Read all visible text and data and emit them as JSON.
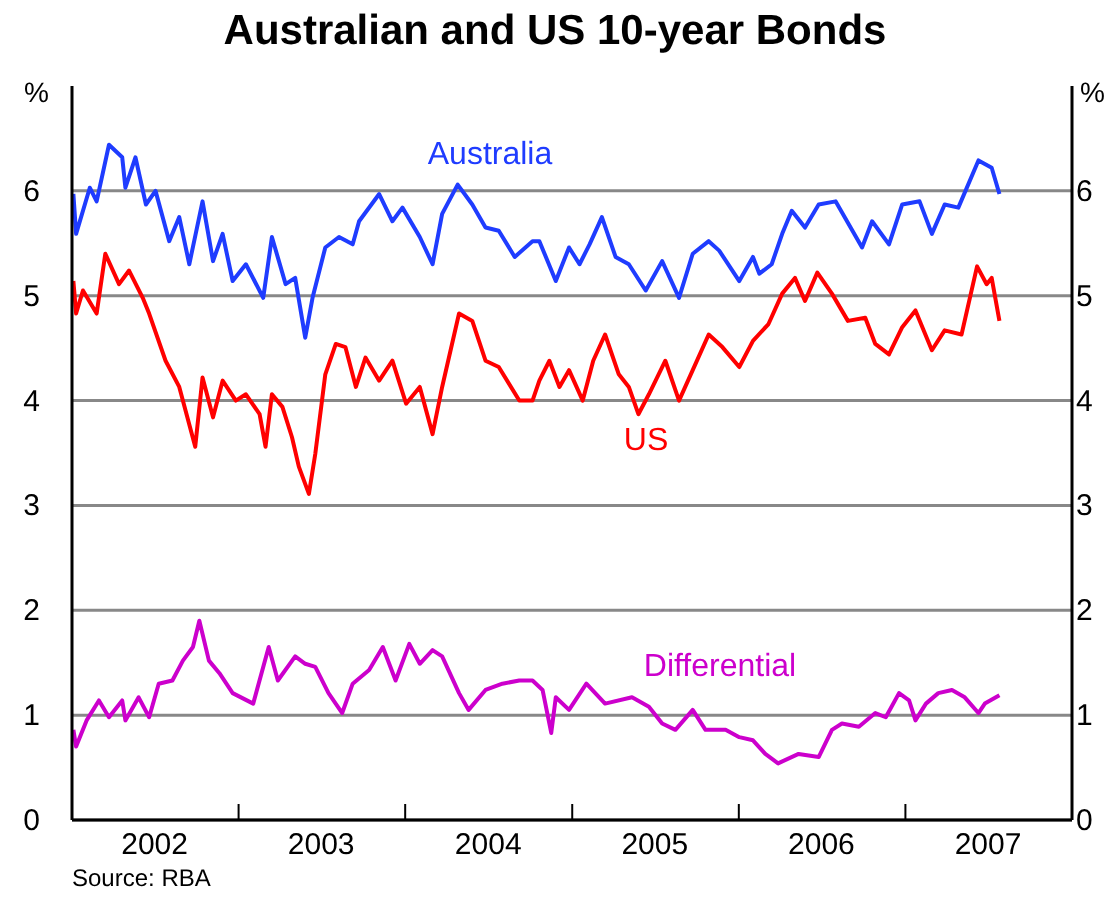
{
  "chart_data": {
    "type": "line",
    "title": "Australian and US 10-year Bonds",
    "ylabel": "%",
    "y2label": "%",
    "annotations": [
      "Source: RBA"
    ],
    "xlim": [
      "2002-01-01",
      "2008-01-01"
    ],
    "xticks": [
      {
        "value": "2002-07-01",
        "label": "2002"
      },
      {
        "value": "2003-01-01",
        "label": null
      },
      {
        "value": "2003-07-01",
        "label": "2003"
      },
      {
        "value": "2004-01-01",
        "label": null
      },
      {
        "value": "2004-07-01",
        "label": "2004"
      },
      {
        "value": "2005-01-01",
        "label": null
      },
      {
        "value": "2005-07-01",
        "label": "2005"
      },
      {
        "value": "2006-01-01",
        "label": null
      },
      {
        "value": "2006-07-01",
        "label": "2006"
      },
      {
        "value": "2007-01-01",
        "label": null
      },
      {
        "value": "2007-07-01",
        "label": "2007"
      }
    ],
    "ylim": [
      0,
      7
    ],
    "yticks": [
      0,
      1,
      2,
      3,
      4,
      5,
      6
    ],
    "y2lim": [
      0,
      7
    ],
    "y2ticks": [
      0,
      1,
      2,
      3,
      4,
      5,
      6
    ],
    "grid": "y",
    "series": [
      {
        "name": "Australia",
        "color": "#1f3cff",
        "x": [
          "2002-01-04",
          "2002-01-10",
          "2002-02-09",
          "2002-02-24",
          "2002-03-23",
          "2002-04-21",
          "2002-04-28",
          "2002-05-20",
          "2002-06-12",
          "2002-07-03",
          "2002-08-02",
          "2002-08-24",
          "2002-09-15",
          "2002-10-14",
          "2002-11-06",
          "2002-11-27",
          "2002-12-19",
          "2003-01-17",
          "2003-02-24",
          "2003-03-15",
          "2003-04-14",
          "2003-05-05",
          "2003-05-27",
          "2003-06-12",
          "2003-07-10",
          "2003-08-09",
          "2003-09-08",
          "2003-09-22",
          "2003-11-05",
          "2003-12-04",
          "2003-12-26",
          "2004-02-02",
          "2004-03-01",
          "2004-03-22",
          "2004-04-25",
          "2004-05-27",
          "2004-06-25",
          "2004-07-24",
          "2004-08-28",
          "2004-10-06",
          "2004-10-21",
          "2004-11-26",
          "2004-12-25",
          "2005-01-17",
          "2005-02-08",
          "2005-03-07",
          "2005-04-06",
          "2005-05-05",
          "2005-06-11",
          "2005-07-17",
          "2005-08-23",
          "2005-09-22",
          "2005-10-27",
          "2005-11-19",
          "2006-01-02",
          "2006-02-01",
          "2006-02-15",
          "2006-03-14",
          "2006-04-06",
          "2006-04-27",
          "2006-05-26",
          "2006-06-25",
          "2006-08-01",
          "2006-09-07",
          "2006-09-28",
          "2006-10-20",
          "2006-11-26",
          "2006-12-25",
          "2007-02-01",
          "2007-02-28",
          "2007-03-28",
          "2007-04-27",
          "2007-06-10",
          "2007-07-09",
          "2007-07-26"
        ],
        "values": [
          5.97,
          5.59,
          6.03,
          5.9,
          6.44,
          6.32,
          6.03,
          6.32,
          5.87,
          6.0,
          5.52,
          5.75,
          5.3,
          5.9,
          5.33,
          5.59,
          5.14,
          5.3,
          4.98,
          5.56,
          5.11,
          5.17,
          4.6,
          4.98,
          5.46,
          5.56,
          5.49,
          5.71,
          5.97,
          5.71,
          5.84,
          5.56,
          5.3,
          5.78,
          6.06,
          5.87,
          5.65,
          5.62,
          5.37,
          5.52,
          5.52,
          5.14,
          5.46,
          5.3,
          5.49,
          5.75,
          5.37,
          5.3,
          5.05,
          5.33,
          4.98,
          5.4,
          5.52,
          5.43,
          5.14,
          5.37,
          5.21,
          5.3,
          5.59,
          5.81,
          5.65,
          5.87,
          5.9,
          5.62,
          5.46,
          5.71,
          5.49,
          5.87,
          5.9,
          5.59,
          5.87,
          5.84,
          6.29,
          6.22,
          5.97
        ]
      },
      {
        "name": "US",
        "color": "#ff0000",
        "x": [
          "2002-01-04",
          "2002-01-10",
          "2002-01-25",
          "2002-02-24",
          "2002-03-15",
          "2002-04-14",
          "2002-05-06",
          "2002-06-05",
          "2002-06-19",
          "2002-07-25",
          "2002-08-24",
          "2002-09-28",
          "2002-10-14",
          "2002-11-06",
          "2002-11-27",
          "2002-12-26",
          "2003-01-17",
          "2003-02-16",
          "2003-03-01",
          "2003-03-15",
          "2003-04-07",
          "2003-04-28",
          "2003-05-13",
          "2003-06-04",
          "2003-06-18",
          "2003-07-10",
          "2003-08-02",
          "2003-08-23",
          "2003-09-15",
          "2003-10-06",
          "2003-11-05",
          "2003-12-04",
          "2004-01-03",
          "2004-02-02",
          "2004-03-01",
          "2004-03-22",
          "2004-04-28",
          "2004-05-27",
          "2004-06-25",
          "2004-07-24",
          "2004-09-07",
          "2004-10-06",
          "2004-10-21",
          "2004-11-12",
          "2004-12-04",
          "2004-12-25",
          "2005-01-24",
          "2005-02-16",
          "2005-03-14",
          "2005-04-13",
          "2005-05-05",
          "2005-05-26",
          "2005-06-18",
          "2005-07-24",
          "2005-08-23",
          "2005-09-22",
          "2005-10-27",
          "2005-11-26",
          "2006-01-02",
          "2006-02-01",
          "2006-03-07",
          "2006-04-06",
          "2006-05-04",
          "2006-05-26",
          "2006-06-22",
          "2006-07-24",
          "2006-08-28",
          "2006-10-05",
          "2006-10-27",
          "2006-11-26",
          "2006-12-25",
          "2007-01-23",
          "2007-02-28",
          "2007-03-28",
          "2007-05-04",
          "2007-06-07",
          "2007-06-28",
          "2007-07-09",
          "2007-07-26"
        ],
        "values": [
          5.14,
          4.83,
          5.05,
          4.83,
          5.4,
          5.11,
          5.24,
          4.98,
          4.83,
          4.38,
          4.13,
          3.56,
          4.22,
          3.84,
          4.19,
          4.0,
          4.06,
          3.87,
          3.56,
          4.06,
          3.94,
          3.65,
          3.37,
          3.11,
          3.49,
          4.25,
          4.54,
          4.51,
          4.13,
          4.41,
          4.19,
          4.38,
          3.97,
          4.13,
          3.68,
          4.13,
          4.83,
          4.76,
          4.38,
          4.32,
          4.0,
          4.0,
          4.19,
          4.38,
          4.13,
          4.29,
          4.0,
          4.38,
          4.63,
          4.25,
          4.13,
          3.87,
          4.06,
          4.38,
          4.0,
          4.29,
          4.63,
          4.51,
          4.32,
          4.57,
          4.73,
          5.02,
          5.17,
          4.95,
          5.22,
          5.02,
          4.76,
          4.79,
          4.54,
          4.44,
          4.7,
          4.86,
          4.48,
          4.67,
          4.63,
          5.28,
          5.11,
          5.17,
          4.76
        ]
      },
      {
        "name": "Differential",
        "color": "#cc00cc",
        "x": [
          "2002-01-04",
          "2002-01-10",
          "2002-02-02",
          "2002-03-01",
          "2002-03-23",
          "2002-04-21",
          "2002-04-28",
          "2002-05-27",
          "2002-06-19",
          "2002-07-10",
          "2002-08-09",
          "2002-09-01",
          "2002-09-23",
          "2002-10-07",
          "2002-10-28",
          "2002-11-20",
          "2002-12-19",
          "2003-02-02",
          "2003-03-08",
          "2003-03-28",
          "2003-05-05",
          "2003-05-27",
          "2003-06-18",
          "2003-07-17",
          "2003-08-16",
          "2003-09-08",
          "2003-10-14",
          "2003-11-13",
          "2003-12-11",
          "2004-01-10",
          "2004-02-02",
          "2004-03-01",
          "2004-03-22",
          "2004-04-28",
          "2004-05-19",
          "2004-06-25",
          "2004-08-01",
          "2004-09-07",
          "2004-10-06",
          "2004-10-28",
          "2004-11-16",
          "2004-11-26",
          "2004-12-25",
          "2005-02-01",
          "2005-03-14",
          "2005-05-12",
          "2005-06-18",
          "2005-07-17",
          "2005-08-15",
          "2005-09-22",
          "2005-10-20",
          "2005-12-03",
          "2006-01-02",
          "2006-02-01",
          "2006-02-28",
          "2006-03-28",
          "2006-05-12",
          "2006-06-25",
          "2006-07-24",
          "2006-08-15",
          "2006-09-21",
          "2006-10-27",
          "2006-11-19",
          "2006-12-18",
          "2007-01-09",
          "2007-01-23",
          "2007-02-15",
          "2007-03-14",
          "2007-04-13",
          "2007-05-11",
          "2007-06-10",
          "2007-06-24",
          "2007-07-26"
        ],
        "values": [
          0.86,
          0.7,
          0.95,
          1.14,
          0.98,
          1.14,
          0.95,
          1.17,
          0.98,
          1.3,
          1.33,
          1.52,
          1.65,
          1.9,
          1.52,
          1.4,
          1.21,
          1.11,
          1.65,
          1.33,
          1.56,
          1.49,
          1.46,
          1.21,
          1.02,
          1.3,
          1.43,
          1.65,
          1.33,
          1.68,
          1.49,
          1.62,
          1.56,
          1.21,
          1.05,
          1.24,
          1.3,
          1.33,
          1.33,
          1.24,
          0.83,
          1.17,
          1.05,
          1.3,
          1.11,
          1.17,
          1.08,
          0.92,
          0.86,
          1.05,
          0.86,
          0.86,
          0.79,
          0.76,
          0.63,
          0.54,
          0.63,
          0.6,
          0.86,
          0.92,
          0.89,
          1.02,
          0.98,
          1.21,
          1.14,
          0.95,
          1.11,
          1.21,
          1.24,
          1.17,
          1.02,
          1.11,
          1.19
        ]
      }
    ]
  }
}
